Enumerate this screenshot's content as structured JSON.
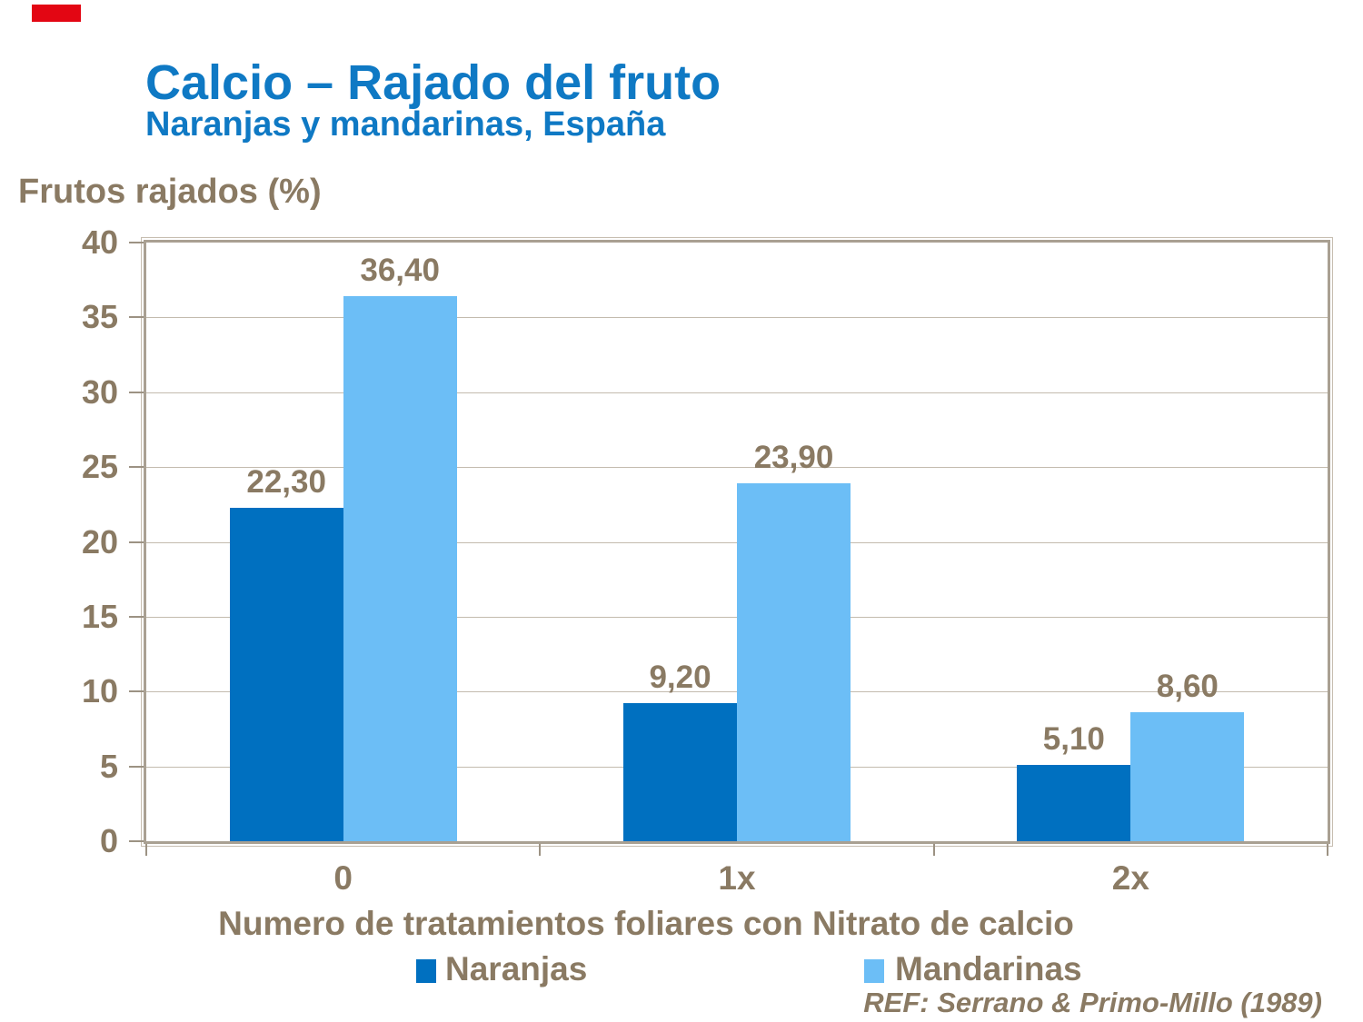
{
  "slide": {
    "marker_color": "#E30613",
    "title": "Calcio – Rajado del fruto",
    "subtitle": "Naranjas y mandarinas, España",
    "title_color": "#0F79C4",
    "footer_ref": "REF: Serrano & Primo-Millo (1989)"
  },
  "chart_data": {
    "type": "bar",
    "title": "Frutos rajados (%)",
    "ylabel": "Frutos rajados (%)",
    "xlabel": "Numero de tratamientos foliares con Nitrato de calcio",
    "categories": [
      "0",
      "1x",
      "2x"
    ],
    "series": [
      {
        "name": "Naranjas",
        "color": "#0070C0",
        "values": [
          22.3,
          9.2,
          5.1
        ],
        "labels": [
          "22,30",
          "9,20",
          "5,10"
        ]
      },
      {
        "name": "Mandarinas",
        "color": "#6CBEF6",
        "values": [
          36.4,
          23.9,
          8.6
        ],
        "labels": [
          "36,40",
          "23,90",
          "8,60"
        ]
      }
    ],
    "ylim": [
      0,
      40
    ],
    "ytick_step": 5,
    "yticks": [
      "0",
      "5",
      "10",
      "15",
      "20",
      "25",
      "30",
      "35",
      "40"
    ],
    "grid": "horizontal",
    "legend_position": "bottom",
    "colors": {
      "text": "#8A7A63",
      "gridline": "#C3BBAE",
      "plot_border": "#A9A092",
      "plot_border_outer": "#C6BDB0",
      "tick": "#9C9283"
    }
  }
}
